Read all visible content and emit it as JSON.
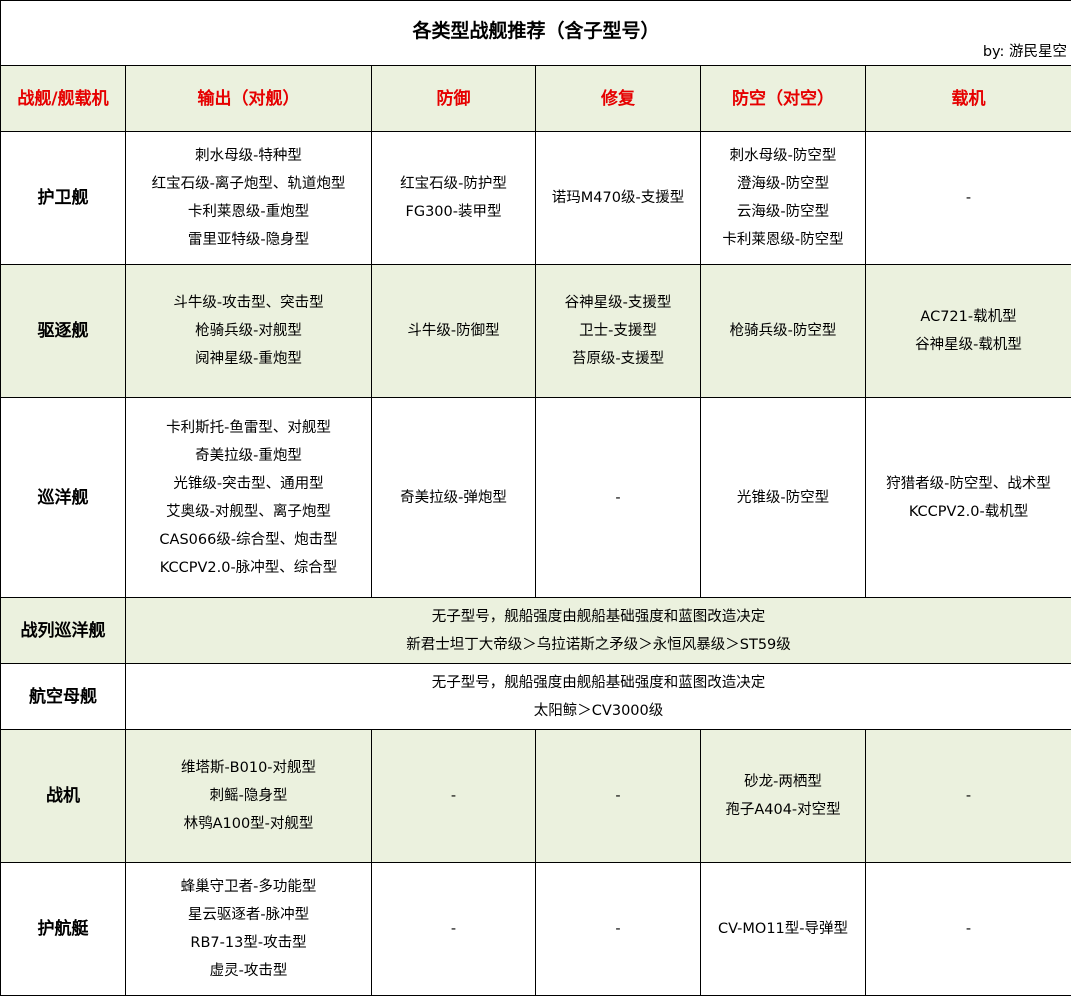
{
  "title": "各类型战舰推荐（含子型号）",
  "byline": "by: 游民星空",
  "colors": {
    "header_bg": "#ebf1de",
    "header_text": "#e60000",
    "alt_row_bg": "#ebf1de"
  },
  "headers": [
    "战舰/舰载机",
    "输出（对舰）",
    "防御",
    "修复",
    "防空（对空）",
    "载机"
  ],
  "rows": [
    {
      "name": "护卫舰",
      "green": false,
      "cells": [
        [
          "刺水母级-特种型",
          "红宝石级-离子炮型、轨道炮型",
          "卡利莱恩级-重炮型",
          "雷里亚特级-隐身型"
        ],
        [
          "红宝石级-防护型",
          "FG300-装甲型"
        ],
        [
          "诺玛M470级-支援型"
        ],
        [
          "刺水母级-防空型",
          "澄海级-防空型",
          "云海级-防空型",
          "卡利莱恩级-防空型"
        ],
        [
          "-"
        ]
      ]
    },
    {
      "name": "驱逐舰",
      "green": true,
      "cells": [
        [
          "斗牛级-攻击型、突击型",
          "枪骑兵级-对舰型",
          "阋神星级-重炮型"
        ],
        [
          "斗牛级-防御型"
        ],
        [
          "谷神星级-支援型",
          "卫士-支援型",
          "苔原级-支援型"
        ],
        [
          "枪骑兵级-防空型"
        ],
        [
          "AC721-载机型",
          "谷神星级-载机型"
        ]
      ]
    },
    {
      "name": "巡洋舰",
      "green": false,
      "cells": [
        [
          "卡利斯托-鱼雷型、对舰型",
          "奇美拉级-重炮型",
          "光锥级-突击型、通用型",
          "艾奥级-对舰型、离子炮型",
          "CAS066级-综合型、炮击型",
          "KCCPV2.0-脉冲型、综合型"
        ],
        [
          "奇美拉级-弹炮型"
        ],
        [
          "-"
        ],
        [
          "光锥级-防空型"
        ],
        [
          "狩猎者级-防空型、战术型",
          "KCCPV2.0-载机型"
        ]
      ]
    },
    {
      "name": "战列巡洋舰",
      "green": true,
      "merged": [
        "无子型号，舰船强度由舰船基础强度和蓝图改造决定",
        "新君士坦丁大帝级＞乌拉诺斯之矛级＞永恒风暴级＞ST59级"
      ]
    },
    {
      "name": "航空母舰",
      "green": false,
      "merged": [
        "无子型号，舰船强度由舰船基础强度和蓝图改造决定",
        "太阳鲸＞CV3000级"
      ]
    },
    {
      "name": "战机",
      "green": true,
      "cells": [
        [
          "维塔斯-B010-对舰型",
          "刺鳐-隐身型",
          "林鸮A100型-对舰型"
        ],
        [
          "-"
        ],
        [
          "-"
        ],
        [
          "砂龙-两栖型",
          "孢子A404-对空型"
        ],
        [
          "-"
        ]
      ]
    },
    {
      "name": "护航艇",
      "green": false,
      "cells": [
        [
          "蜂巢守卫者-多功能型",
          "星云驱逐者-脉冲型",
          "RB7-13型-攻击型",
          "虚灵-攻击型"
        ],
        [
          "-"
        ],
        [
          "-"
        ],
        [
          "CV-MO11型-导弹型"
        ],
        [
          "-"
        ]
      ]
    }
  ]
}
